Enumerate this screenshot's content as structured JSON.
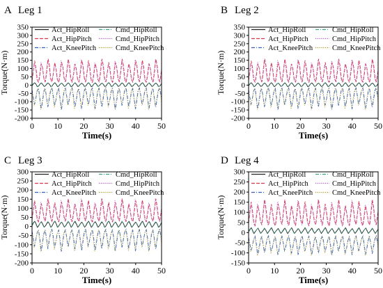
{
  "colors": {
    "act_hiproll": "#222222",
    "cmd_hiproll": "#3aa58a",
    "act_hippitch": "#d8344a",
    "cmd_hippitch": "#b04ec8",
    "act_kneepitch": "#3560c6",
    "cmd_kneepitch": "#a89a1e"
  },
  "chart_data": [
    {
      "type": "line",
      "panel_letter": "A",
      "title": "Leg 1",
      "xlabel": "Time(s)",
      "ylabel": "Torque(N·m)",
      "xlim": [
        0,
        50
      ],
      "ylim": [
        -200,
        350
      ],
      "xticks": [
        0,
        10,
        20,
        30,
        40,
        50
      ],
      "yticks": [
        -200,
        -150,
        -100,
        -50,
        0,
        50,
        100,
        150,
        200,
        250,
        300,
        350
      ],
      "legend": [
        "Act_HipRoll",
        "Cmd_HipRoll",
        "Act_HipPitch",
        "Cmd_HipPitch",
        "Act_KneePitch",
        "Cmd_KneePitch"
      ],
      "legend_position": "top",
      "period_s": 2.6,
      "cycles": 19,
      "series": [
        {
          "name": "Act_HipRoll",
          "style": "solid",
          "waveform": [
            -5,
            8,
            15,
            5,
            -10,
            -5
          ]
        },
        {
          "name": "Cmd_HipRoll",
          "style": "dashdot",
          "waveform": [
            -5,
            8,
            15,
            5,
            -10,
            -5
          ]
        },
        {
          "name": "Act_HipPitch",
          "style": "dash",
          "waveform": [
            20,
            80,
            160,
            120,
            40,
            20
          ]
        },
        {
          "name": "Cmd_HipPitch",
          "style": "dot",
          "waveform": [
            20,
            80,
            160,
            120,
            40,
            20
          ]
        },
        {
          "name": "Act_KneePitch",
          "style": "dashdot",
          "waveform": [
            -20,
            -80,
            -150,
            -100,
            -40,
            -20
          ]
        },
        {
          "name": "Cmd_KneePitch",
          "style": "dot",
          "waveform": [
            -20,
            -80,
            -150,
            -100,
            -40,
            -20
          ]
        }
      ]
    },
    {
      "type": "line",
      "panel_letter": "B",
      "title": "Leg 2",
      "xlabel": "Time(s)",
      "ylabel": "Torque(N·m)",
      "xlim": [
        0,
        50
      ],
      "ylim": [
        -200,
        350
      ],
      "xticks": [
        0,
        10,
        20,
        30,
        40,
        50
      ],
      "yticks": [
        -200,
        -150,
        -100,
        -50,
        0,
        50,
        100,
        150,
        200,
        250,
        300,
        350
      ],
      "legend": [
        "Act_HipRoll",
        "Cmd_HipRoll",
        "Act_HipPitch",
        "Cmd_HipPitch",
        "Act_KneePitch",
        "Cmd_KneePitch"
      ],
      "legend_position": "top",
      "period_s": 2.6,
      "cycles": 19,
      "series": [
        {
          "name": "Act_HipRoll",
          "style": "solid",
          "waveform": [
            -5,
            8,
            15,
            5,
            -10,
            -5
          ]
        },
        {
          "name": "Cmd_HipRoll",
          "style": "dashdot",
          "waveform": [
            -5,
            8,
            15,
            5,
            -10,
            -5
          ]
        },
        {
          "name": "Act_HipPitch",
          "style": "dash",
          "waveform": [
            20,
            80,
            160,
            120,
            40,
            20
          ]
        },
        {
          "name": "Cmd_HipPitch",
          "style": "dot",
          "waveform": [
            20,
            80,
            160,
            120,
            40,
            20
          ]
        },
        {
          "name": "Act_KneePitch",
          "style": "dashdot",
          "waveform": [
            -20,
            -80,
            -150,
            -100,
            -40,
            -20
          ]
        },
        {
          "name": "Cmd_KneePitch",
          "style": "dot",
          "waveform": [
            -20,
            -80,
            -150,
            -100,
            -40,
            -20
          ]
        }
      ]
    },
    {
      "type": "line",
      "panel_letter": "C",
      "title": "Leg 3",
      "xlabel": "Time(s)",
      "ylabel": "Torque(N·m)",
      "xlim": [
        0,
        50
      ],
      "ylim": [
        -200,
        300
      ],
      "xticks": [
        0,
        10,
        20,
        30,
        40,
        50
      ],
      "yticks": [
        -200,
        -150,
        -100,
        -50,
        0,
        50,
        100,
        150,
        200,
        250,
        300
      ],
      "legend": [
        "Act_HipRoll",
        "Cmd_HipRoll",
        "Act_HipPitch",
        "Cmd_HipPitch",
        "Act_KneePitch",
        "Cmd_KneePitch"
      ],
      "legend_position": "top",
      "period_s": 2.6,
      "cycles": 19,
      "series": [
        {
          "name": "Act_HipRoll",
          "style": "solid",
          "waveform": [
            5,
            20,
            30,
            15,
            -5,
            5
          ]
        },
        {
          "name": "Cmd_HipRoll",
          "style": "dashdot",
          "waveform": [
            5,
            20,
            30,
            15,
            -5,
            5
          ]
        },
        {
          "name": "Act_HipPitch",
          "style": "dash",
          "waveform": [
            30,
            90,
            155,
            110,
            50,
            30
          ]
        },
        {
          "name": "Cmd_HipPitch",
          "style": "dot",
          "waveform": [
            30,
            90,
            155,
            110,
            50,
            30
          ]
        },
        {
          "name": "Act_KneePitch",
          "style": "dashdot",
          "waveform": [
            -20,
            -70,
            -140,
            -90,
            -40,
            -20
          ]
        },
        {
          "name": "Cmd_KneePitch",
          "style": "dot",
          "waveform": [
            -20,
            -70,
            -140,
            -90,
            -40,
            -20
          ]
        }
      ]
    },
    {
      "type": "line",
      "panel_letter": "D",
      "title": "Leg 4",
      "xlabel": "Time(s)",
      "ylabel": "Torque(N·m)",
      "xlim": [
        0,
        50
      ],
      "ylim": [
        -150,
        300
      ],
      "xticks": [
        0,
        10,
        20,
        30,
        40,
        50
      ],
      "yticks": [
        -150,
        -100,
        -50,
        0,
        50,
        100,
        150,
        200,
        250,
        300
      ],
      "legend": [
        "Act_HipRoll",
        "Cmd_HipRoll",
        "Act_HipPitch",
        "Cmd_HipPitch",
        "Act_KneePitch",
        "Cmd_KneePitch"
      ],
      "legend_position": "top",
      "period_s": 2.6,
      "cycles": 19,
      "series": [
        {
          "name": "Act_HipRoll",
          "style": "solid",
          "waveform": [
            5,
            15,
            25,
            10,
            -5,
            5
          ]
        },
        {
          "name": "Cmd_HipRoll",
          "style": "dashdot",
          "waveform": [
            5,
            15,
            25,
            10,
            -5,
            5
          ]
        },
        {
          "name": "Act_HipPitch",
          "style": "dash",
          "waveform": [
            40,
            100,
            165,
            120,
            60,
            40
          ]
        },
        {
          "name": "Cmd_HipPitch",
          "style": "dot",
          "waveform": [
            40,
            100,
            165,
            120,
            60,
            40
          ]
        },
        {
          "name": "Act_KneePitch",
          "style": "dashdot",
          "waveform": [
            -20,
            -60,
            -115,
            -80,
            -40,
            -20
          ]
        },
        {
          "name": "Cmd_KneePitch",
          "style": "dot",
          "waveform": [
            -20,
            -60,
            -115,
            -80,
            -40,
            -20
          ]
        }
      ]
    }
  ]
}
